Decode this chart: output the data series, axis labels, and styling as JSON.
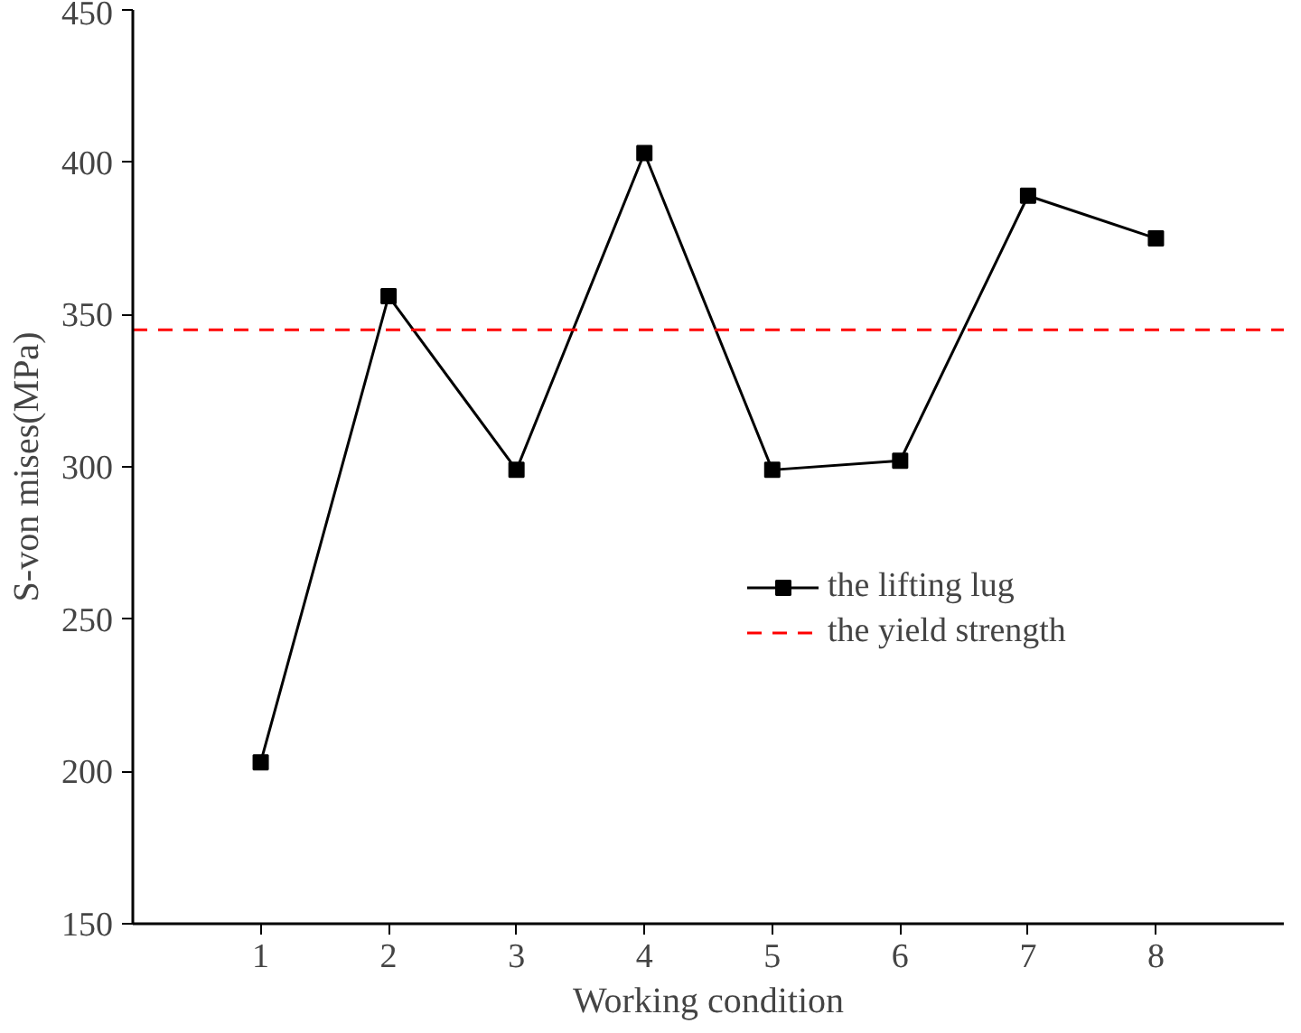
{
  "chart_data": {
    "type": "line",
    "xlabel": "Working condition",
    "ylabel": "S-von mises(MPa)",
    "x": [
      1,
      2,
      3,
      4,
      5,
      6,
      7,
      8
    ],
    "series": [
      {
        "name": "the lifting lug",
        "color": "#000000",
        "values": [
          203,
          356,
          299,
          403,
          299,
          302,
          389,
          375
        ]
      }
    ],
    "ref_lines": [
      {
        "axis": "y",
        "value": 345,
        "label": "the yield strength",
        "color": "#ff0000",
        "line_style": "dashed"
      }
    ],
    "xlim": [
      0,
      9
    ],
    "xticks": [
      1,
      2,
      3,
      4,
      5,
      6,
      7,
      8
    ],
    "ylim": [
      150,
      450
    ],
    "yticks": [
      150,
      200,
      250,
      300,
      350,
      400,
      450
    ],
    "grid": false,
    "legend": "right",
    "marker": "square",
    "line_style": "solid"
  }
}
